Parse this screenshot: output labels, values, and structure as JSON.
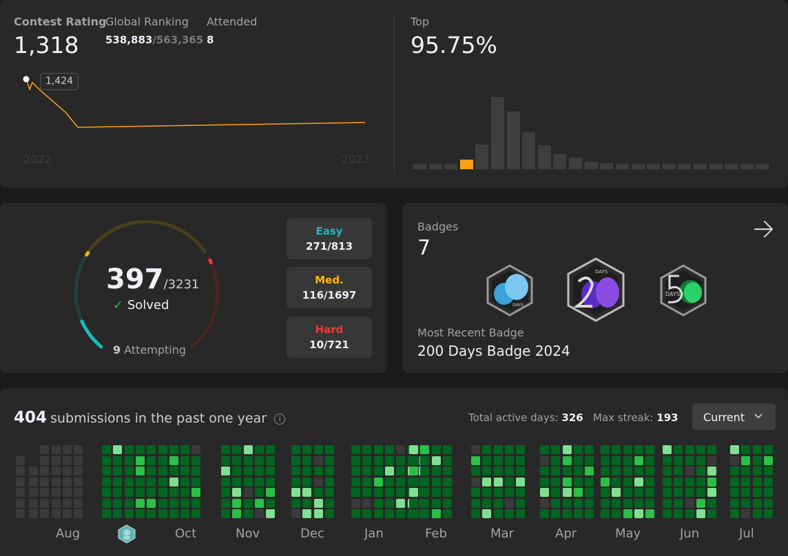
{
  "contest": {
    "rating_label": "Contest Rating",
    "rating_value": "1,318",
    "ranking_label": "Global Ranking",
    "ranking_value": "538,883",
    "ranking_total": "/563,365",
    "attended_label": "Attended",
    "attended_value": "8",
    "tooltip": "1,424",
    "year_start": "2022",
    "year_end": "2023",
    "top_label": "Top",
    "top_value": "95.75%"
  },
  "histogram": {
    "type": "bar",
    "highlight_index": 3,
    "values": [
      8,
      8,
      8,
      14,
      36,
      105,
      84,
      54,
      35,
      22,
      17,
      11,
      9,
      8,
      8,
      8,
      8,
      8,
      8,
      8,
      8,
      8,
      8
    ],
    "colors": {
      "bar": "#3e3e3e",
      "highlight": "#ffa116"
    }
  },
  "problems": {
    "solved": "397",
    "total": "/3231",
    "solved_label": "Solved",
    "attempting_count": "9",
    "attempting_label": "Attempting",
    "easy": {
      "label": "Easy",
      "value": "271/813",
      "color": "#1cbaba"
    },
    "medium": {
      "label": "Med.",
      "value": "116/1697",
      "color": "#ffb700"
    },
    "hard": {
      "label": "Hard",
      "value": "10/721",
      "color": "#f63737"
    }
  },
  "badges": {
    "label": "Badges",
    "count": "7",
    "recent_label": "Most Recent Badge",
    "recent_name": "200 Days Badge 2024",
    "badge1_text": "DAYS",
    "badge2_text": "DAYS",
    "badge3_text": "DAYS",
    "icon": "arrow-right-icon"
  },
  "calendar": {
    "count": "404",
    "label": "submissions in the past one year",
    "active_label": "Total active days:",
    "active_value": "326",
    "streak_label": "Max streak:",
    "streak_value": "193",
    "select_value": "Current",
    "months": [
      "Aug",
      "Oct",
      "Nov",
      "Dec",
      "Jan",
      "Feb",
      "Mar",
      "Apr",
      "May",
      "Jun",
      "Jul"
    ],
    "colors": {
      "empty": "#3a3a3a",
      "low": "#016620",
      "mid": "#28c244",
      "high": "#7fe18f"
    }
  }
}
